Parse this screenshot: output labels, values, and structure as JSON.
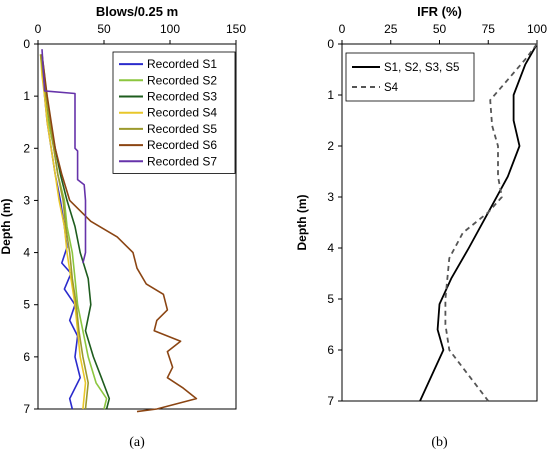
{
  "chart_data": [
    {
      "type": "line",
      "panel_label": "(a)",
      "title": "Blows/0.25 m",
      "xlabel": "Blows/0.25 m",
      "ylabel": "Depth (m)",
      "xlim": [
        0,
        150
      ],
      "ylim": [
        0,
        7
      ],
      "x_reversed": false,
      "y_inverted": true,
      "x_ticks": [
        "0",
        "50",
        "100",
        "150"
      ],
      "y_ticks": [
        "0",
        "1",
        "2",
        "3",
        "4",
        "5",
        "6",
        "7"
      ],
      "grid": false,
      "legend_position": "top-right",
      "series": [
        {
          "name": "Recorded S1",
          "color": "#2b2bcc",
          "points": [
            [
              3,
              0.2
            ],
            [
              4,
              0.6
            ],
            [
              5,
              1.0
            ],
            [
              7,
              1.5
            ],
            [
              10,
              2.0
            ],
            [
              13,
              2.5
            ],
            [
              17,
              3.0
            ],
            [
              20,
              3.5
            ],
            [
              22,
              3.9
            ],
            [
              18,
              4.2
            ],
            [
              25,
              4.4
            ],
            [
              20,
              4.7
            ],
            [
              28,
              5.0
            ],
            [
              24,
              5.3
            ],
            [
              30,
              5.6
            ],
            [
              28,
              6.0
            ],
            [
              32,
              6.4
            ],
            [
              24,
              6.8
            ],
            [
              26,
              7.0
            ]
          ]
        },
        {
          "name": "Recorded S2",
          "color": "#8cc63f",
          "points": [
            [
              3,
              0.2
            ],
            [
              5,
              0.6
            ],
            [
              6,
              1.0
            ],
            [
              8,
              1.5
            ],
            [
              12,
              2.0
            ],
            [
              15,
              2.5
            ],
            [
              20,
              3.0
            ],
            [
              22,
              3.5
            ],
            [
              26,
              4.0
            ],
            [
              28,
              4.5
            ],
            [
              30,
              5.0
            ],
            [
              34,
              5.5
            ],
            [
              38,
              6.0
            ],
            [
              44,
              6.5
            ],
            [
              52,
              6.8
            ],
            [
              50,
              7.0
            ]
          ]
        },
        {
          "name": "Recorded S3",
          "color": "#1e5c1e",
          "points": [
            [
              2,
              0.2
            ],
            [
              4,
              0.6
            ],
            [
              6,
              1.0
            ],
            [
              9,
              1.5
            ],
            [
              13,
              2.0
            ],
            [
              17,
              2.5
            ],
            [
              22,
              3.0
            ],
            [
              28,
              3.5
            ],
            [
              32,
              4.0
            ],
            [
              38,
              4.5
            ],
            [
              40,
              5.0
            ],
            [
              36,
              5.5
            ],
            [
              42,
              6.0
            ],
            [
              48,
              6.4
            ],
            [
              54,
              6.8
            ],
            [
              52,
              7.0
            ]
          ]
        },
        {
          "name": "Recorded S4",
          "color": "#e8c72a",
          "points": [
            [
              2,
              0.2
            ],
            [
              3,
              0.6
            ],
            [
              5,
              1.0
            ],
            [
              7,
              1.5
            ],
            [
              10,
              2.0
            ],
            [
              13,
              2.5
            ],
            [
              16,
              3.0
            ],
            [
              20,
              3.5
            ],
            [
              22,
              4.0
            ],
            [
              25,
              4.5
            ],
            [
              28,
              5.0
            ],
            [
              30,
              5.5
            ],
            [
              32,
              6.0
            ],
            [
              36,
              6.5
            ],
            [
              34,
              7.0
            ]
          ]
        },
        {
          "name": "Recorded S5",
          "color": "#9c9a2c",
          "points": [
            [
              2,
              0.2
            ],
            [
              4,
              0.6
            ],
            [
              6,
              1.0
            ],
            [
              9,
              1.5
            ],
            [
              12,
              2.0
            ],
            [
              15,
              2.5
            ],
            [
              19,
              3.0
            ],
            [
              21,
              3.5
            ],
            [
              24,
              4.0
            ],
            [
              26,
              4.5
            ],
            [
              29,
              5.0
            ],
            [
              31,
              5.5
            ],
            [
              34,
              6.0
            ],
            [
              38,
              6.5
            ],
            [
              36,
              7.0
            ]
          ]
        },
        {
          "name": "Recorded S6",
          "color": "#8b4513",
          "points": [
            [
              3,
              0.2
            ],
            [
              5,
              0.6
            ],
            [
              7,
              1.0
            ],
            [
              10,
              1.5
            ],
            [
              13,
              2.0
            ],
            [
              18,
              2.5
            ],
            [
              24,
              3.0
            ],
            [
              40,
              3.4
            ],
            [
              60,
              3.7
            ],
            [
              72,
              4.0
            ],
            [
              75,
              4.3
            ],
            [
              82,
              4.6
            ],
            [
              95,
              4.8
            ],
            [
              98,
              5.1
            ],
            [
              90,
              5.3
            ],
            [
              88,
              5.5
            ],
            [
              108,
              5.7
            ],
            [
              98,
              5.9
            ],
            [
              102,
              6.2
            ],
            [
              98,
              6.4
            ],
            [
              110,
              6.6
            ],
            [
              120,
              6.8
            ],
            [
              90,
              7.0
            ],
            [
              75,
              7.05
            ]
          ]
        },
        {
          "name": "Recorded S7",
          "color": "#6633aa",
          "points": [
            [
              3,
              0.1
            ],
            [
              4,
              0.5
            ],
            [
              5,
              0.9
            ],
            [
              28,
              0.95
            ],
            [
              28,
              2.0
            ],
            [
              30,
              2.05
            ],
            [
              30,
              2.6
            ],
            [
              35,
              2.7
            ],
            [
              36,
              3.0
            ],
            [
              36,
              3.6
            ],
            [
              36,
              4.0
            ],
            [
              34,
              4.2
            ]
          ]
        }
      ]
    },
    {
      "type": "line",
      "panel_label": "(b)",
      "title": "IFR (%)",
      "xlabel": "IFR (%)",
      "ylabel": "Depth (m)",
      "xlim": [
        0,
        100
      ],
      "ylim": [
        0,
        7
      ],
      "y_inverted": true,
      "x_ticks": [
        "0",
        "25",
        "50",
        "75",
        "100"
      ],
      "y_ticks": [
        "0",
        "1",
        "2",
        "3",
        "4",
        "5",
        "6",
        "7"
      ],
      "grid": false,
      "legend_position": "top-left",
      "series": [
        {
          "name": "S1, S2, S3, S5",
          "color": "#000000",
          "dash": "",
          "points": [
            [
              100,
              0
            ],
            [
              94,
              0.4
            ],
            [
              88,
              1.0
            ],
            [
              88,
              1.5
            ],
            [
              91,
              2.0
            ],
            [
              85,
              2.6
            ],
            [
              75,
              3.3
            ],
            [
              65,
              4.0
            ],
            [
              56,
              4.6
            ],
            [
              50,
              5.1
            ],
            [
              49,
              5.6
            ],
            [
              52,
              6.0
            ],
            [
              46,
              6.5
            ],
            [
              40,
              7.0
            ]
          ]
        },
        {
          "name": "S4",
          "color": "#555555",
          "dash": "5,4",
          "points": [
            [
              100,
              0
            ],
            [
              94,
              0.3
            ],
            [
              85,
              0.7
            ],
            [
              76,
              1.1
            ],
            [
              77,
              1.6
            ],
            [
              80,
              2.0
            ],
            [
              80,
              2.6
            ],
            [
              82,
              3.0
            ],
            [
              75,
              3.3
            ],
            [
              62,
              3.7
            ],
            [
              55,
              4.2
            ],
            [
              53,
              5.0
            ],
            [
              53,
              5.5
            ],
            [
              55,
              6.0
            ],
            [
              65,
              6.5
            ],
            [
              75,
              7.0
            ]
          ]
        }
      ]
    }
  ]
}
